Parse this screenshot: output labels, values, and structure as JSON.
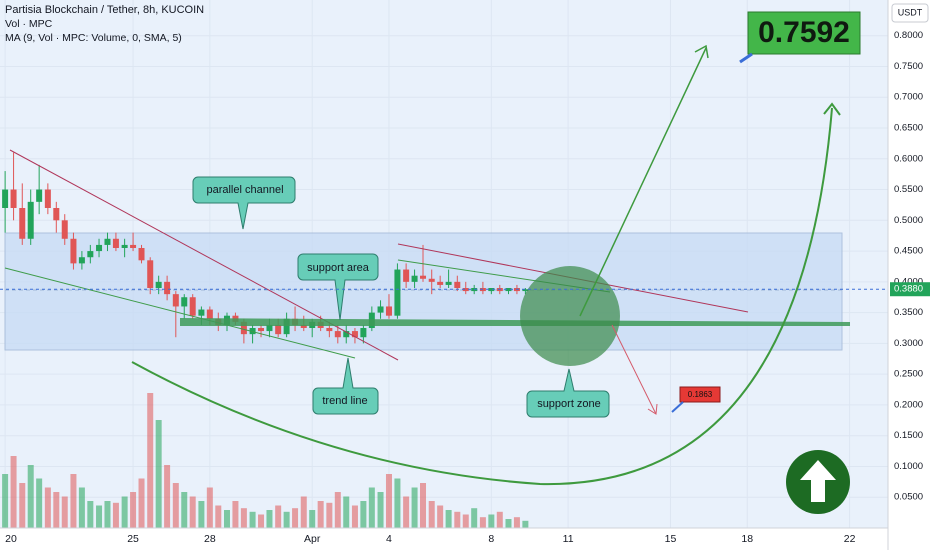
{
  "chart_data": {
    "type": "candlestick",
    "title": "Partisia Blockchain / Tether, 8h, KUCOIN",
    "indicators": [
      "Vol · MPC",
      "MA (9, Vol · MPC: Volume, 0, SMA, 5)"
    ],
    "currency": "USDT",
    "up_color": "#22a45a",
    "down_color": "#e05656",
    "xlim": [
      -0.2,
      34.5
    ],
    "ylim": [
      0,
      0.858
    ],
    "xticks": [
      {
        "value": 0,
        "label": "20"
      },
      {
        "value": 5,
        "label": "25"
      },
      {
        "value": 8,
        "label": "28"
      },
      {
        "value": 12,
        "label": "Apr"
      },
      {
        "value": 15,
        "label": "4"
      },
      {
        "value": 19,
        "label": "8"
      },
      {
        "value": 22,
        "label": "11"
      },
      {
        "value": 26,
        "label": "15"
      },
      {
        "value": 29,
        "label": "18"
      },
      {
        "value": 33,
        "label": "22"
      }
    ],
    "yticks": [
      {
        "value": 0.05,
        "label": "0.0500"
      },
      {
        "value": 0.1,
        "label": "0.1000"
      },
      {
        "value": 0.15,
        "label": "0.1500"
      },
      {
        "value": 0.2,
        "label": "0.2000"
      },
      {
        "value": 0.25,
        "label": "0.2500"
      },
      {
        "value": 0.3,
        "label": "0.3000"
      },
      {
        "value": 0.35,
        "label": "0.3500"
      },
      {
        "value": 0.4,
        "label": "0.4000"
      },
      {
        "value": 0.45,
        "label": "0.4500"
      },
      {
        "value": 0.5,
        "label": "0.5000"
      },
      {
        "value": 0.55,
        "label": "0.5500"
      },
      {
        "value": 0.6,
        "label": "0.6000"
      },
      {
        "value": 0.65,
        "label": "0.6500"
      },
      {
        "value": 0.7,
        "label": "0.7000"
      },
      {
        "value": 0.75,
        "label": "0.7500"
      },
      {
        "value": 0.8,
        "label": "0.8000"
      }
    ],
    "last_price": {
      "value": 0.388,
      "label": "0.3880"
    },
    "annotations": {
      "channel": "parallel channel",
      "support_area": "support area",
      "trend_line": "trend line",
      "support_zone": "support zone",
      "target_high": {
        "value": 0.7592,
        "label": "0.7592"
      },
      "target_low": {
        "value": 0.1863,
        "label": "0.1863"
      }
    },
    "x": [
      0,
      0.33,
      0.67,
      1,
      1.33,
      1.67,
      2,
      2.33,
      2.67,
      3,
      3.33,
      3.67,
      4,
      4.33,
      4.67,
      5,
      5.33,
      5.67,
      6,
      6.33,
      6.67,
      7,
      7.33,
      7.67,
      8,
      8.33,
      8.67,
      9,
      9.33,
      9.67,
      10,
      10.33,
      10.67,
      11,
      11.33,
      11.67,
      12,
      12.33,
      12.67,
      13,
      13.33,
      13.67,
      14,
      14.33,
      14.67,
      15,
      15.33,
      15.67,
      16,
      16.33,
      16.67,
      17,
      17.33,
      17.67,
      18,
      18.33,
      18.67,
      19,
      19.33,
      19.67,
      20,
      20.33
    ],
    "ohlc": [
      [
        0.52,
        0.58,
        0.48,
        0.55
      ],
      [
        0.55,
        0.61,
        0.5,
        0.52
      ],
      [
        0.52,
        0.56,
        0.46,
        0.47
      ],
      [
        0.47,
        0.55,
        0.46,
        0.53
      ],
      [
        0.53,
        0.59,
        0.51,
        0.55
      ],
      [
        0.55,
        0.56,
        0.51,
        0.52
      ],
      [
        0.52,
        0.53,
        0.48,
        0.5
      ],
      [
        0.5,
        0.51,
        0.46,
        0.47
      ],
      [
        0.47,
        0.48,
        0.42,
        0.43
      ],
      [
        0.43,
        0.45,
        0.42,
        0.44
      ],
      [
        0.44,
        0.46,
        0.43,
        0.45
      ],
      [
        0.45,
        0.47,
        0.44,
        0.46
      ],
      [
        0.46,
        0.48,
        0.45,
        0.47
      ],
      [
        0.47,
        0.48,
        0.45,
        0.455
      ],
      [
        0.455,
        0.47,
        0.44,
        0.46
      ],
      [
        0.46,
        0.48,
        0.45,
        0.455
      ],
      [
        0.455,
        0.46,
        0.43,
        0.435
      ],
      [
        0.435,
        0.44,
        0.38,
        0.39
      ],
      [
        0.39,
        0.41,
        0.38,
        0.4
      ],
      [
        0.4,
        0.41,
        0.37,
        0.38
      ],
      [
        0.38,
        0.385,
        0.31,
        0.36
      ],
      [
        0.36,
        0.38,
        0.34,
        0.375
      ],
      [
        0.375,
        0.38,
        0.34,
        0.345
      ],
      [
        0.345,
        0.36,
        0.33,
        0.355
      ],
      [
        0.355,
        0.36,
        0.33,
        0.34
      ],
      [
        0.34,
        0.35,
        0.32,
        0.33
      ],
      [
        0.33,
        0.35,
        0.32,
        0.345
      ],
      [
        0.345,
        0.35,
        0.33,
        0.335
      ],
      [
        0.335,
        0.34,
        0.3,
        0.315
      ],
      [
        0.315,
        0.33,
        0.3,
        0.325
      ],
      [
        0.325,
        0.33,
        0.31,
        0.32
      ],
      [
        0.32,
        0.34,
        0.31,
        0.33
      ],
      [
        0.33,
        0.34,
        0.31,
        0.315
      ],
      [
        0.315,
        0.35,
        0.31,
        0.34
      ],
      [
        0.34,
        0.36,
        0.32,
        0.33
      ],
      [
        0.33,
        0.345,
        0.32,
        0.325
      ],
      [
        0.325,
        0.34,
        0.31,
        0.335
      ],
      [
        0.335,
        0.345,
        0.32,
        0.325
      ],
      [
        0.325,
        0.335,
        0.31,
        0.32
      ],
      [
        0.32,
        0.33,
        0.3,
        0.31
      ],
      [
        0.31,
        0.33,
        0.3,
        0.32
      ],
      [
        0.32,
        0.325,
        0.3,
        0.31
      ],
      [
        0.31,
        0.33,
        0.3,
        0.325
      ],
      [
        0.325,
        0.36,
        0.32,
        0.35
      ],
      [
        0.35,
        0.37,
        0.34,
        0.36
      ],
      [
        0.36,
        0.38,
        0.34,
        0.345
      ],
      [
        0.345,
        0.43,
        0.34,
        0.42
      ],
      [
        0.42,
        0.43,
        0.39,
        0.4
      ],
      [
        0.4,
        0.42,
        0.39,
        0.41
      ],
      [
        0.41,
        0.46,
        0.4,
        0.405
      ],
      [
        0.405,
        0.42,
        0.38,
        0.4
      ],
      [
        0.4,
        0.41,
        0.39,
        0.395
      ],
      [
        0.395,
        0.42,
        0.39,
        0.4
      ],
      [
        0.4,
        0.41,
        0.385,
        0.39
      ],
      [
        0.39,
        0.4,
        0.38,
        0.385
      ],
      [
        0.385,
        0.395,
        0.38,
        0.39
      ],
      [
        0.39,
        0.4,
        0.38,
        0.385
      ],
      [
        0.385,
        0.39,
        0.38,
        0.39
      ],
      [
        0.39,
        0.395,
        0.38,
        0.385
      ],
      [
        0.385,
        0.39,
        0.38,
        0.39
      ],
      [
        0.39,
        0.395,
        0.38,
        0.385
      ],
      [
        0.385,
        0.39,
        0.38,
        0.388
      ]
    ],
    "volume": [
      60,
      80,
      50,
      70,
      55,
      45,
      40,
      35,
      60,
      45,
      30,
      25,
      30,
      28,
      35,
      40,
      55,
      150,
      120,
      70,
      50,
      40,
      35,
      30,
      45,
      25,
      20,
      30,
      22,
      18,
      15,
      20,
      25,
      18,
      22,
      35,
      20,
      30,
      28,
      40,
      35,
      25,
      30,
      45,
      40,
      60,
      55,
      35,
      45,
      50,
      30,
      25,
      20,
      18,
      15,
      22,
      12,
      15,
      18,
      10,
      12,
      8
    ]
  }
}
